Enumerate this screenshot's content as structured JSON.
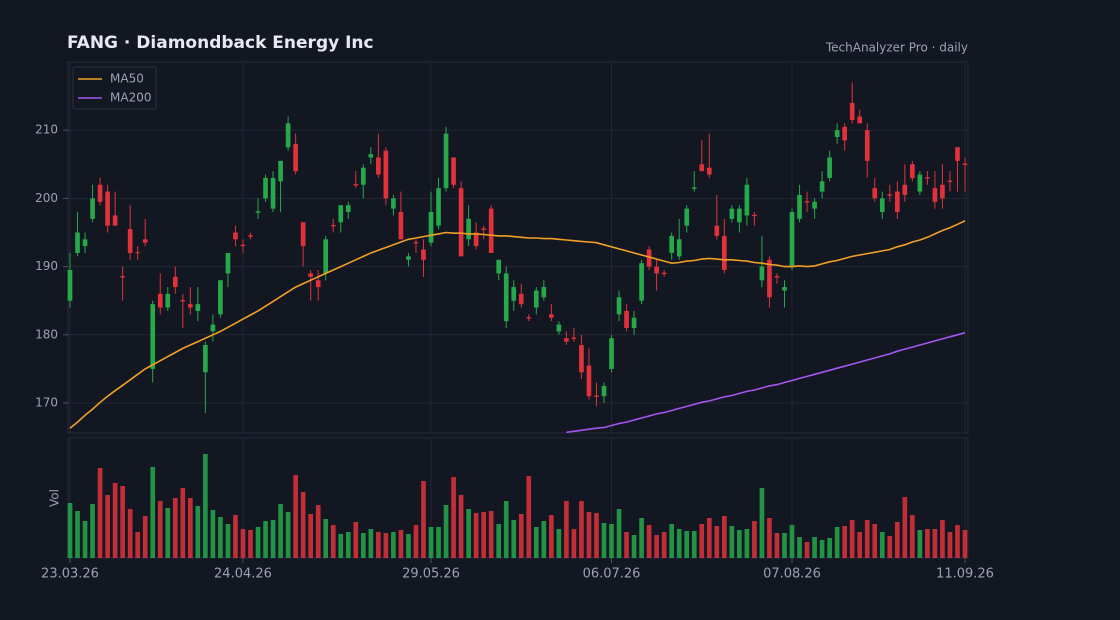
{
  "chart_data": {
    "type": "candlestick",
    "title": "FANG  ·  Diamondback Energy Inc",
    "subtitle": "TechAnalyzer Pro · daily",
    "volume_label": "Vol",
    "x": [
      "23.03.26",
      null,
      null,
      null,
      null,
      null,
      null,
      null,
      null,
      null,
      null,
      null,
      null,
      null,
      null,
      null,
      null,
      null,
      null,
      null,
      null,
      null,
      null,
      "24.04.26",
      null,
      null,
      null,
      null,
      null,
      null,
      null,
      null,
      null,
      null,
      null,
      null,
      null,
      null,
      null,
      null,
      null,
      null,
      null,
      null,
      null,
      null,
      null,
      null,
      "29.05.26",
      null,
      null,
      null,
      null,
      null,
      null,
      null,
      null,
      null,
      null,
      null,
      null,
      null,
      null,
      null,
      null,
      null,
      null,
      null,
      null,
      null,
      null,
      null,
      "06.07.26",
      null,
      null,
      null,
      null,
      null,
      null,
      null,
      null,
      null,
      null,
      null,
      null,
      null,
      null,
      null,
      null,
      null,
      null,
      null,
      null,
      null,
      null,
      null,
      "07.08.26",
      null,
      null,
      null,
      null,
      null,
      null,
      null,
      null,
      null,
      null,
      null,
      null,
      null,
      null,
      null,
      null,
      null,
      null,
      null,
      null,
      null,
      null,
      "11.09.26"
    ],
    "open": [
      185,
      192,
      193,
      197,
      202,
      201,
      197.5,
      188.6,
      195.5,
      192.1,
      194,
      175,
      186,
      184,
      188.5,
      185.1,
      184.5,
      183.5,
      174.5,
      180.5,
      183,
      189,
      195,
      193.2,
      194.6,
      197.9,
      200,
      198.5,
      202.5,
      207.5,
      208,
      196.5,
      189,
      188,
      189,
      196.1,
      196.5,
      198,
      202.1,
      202,
      206,
      206,
      207,
      198.5,
      198,
      191,
      193.6,
      192.5,
      193.5,
      196,
      201.5,
      206,
      201.5,
      194,
      195,
      195.6,
      198.5,
      189,
      182,
      185,
      186,
      182.6,
      184,
      185.5,
      183,
      180.5,
      179.5,
      179.6,
      178.5,
      175.5,
      171.1,
      171,
      175,
      183,
      183.5,
      181,
      185,
      192.5,
      190,
      189.1,
      192,
      191.5,
      196,
      201.4,
      205,
      204.5,
      196,
      194.5,
      197,
      196.5,
      197.5,
      197.6,
      188,
      191,
      188.6,
      186.5,
      190,
      197,
      199.6,
      198.5,
      201,
      203,
      209,
      210.5,
      214,
      212,
      210,
      201.5,
      198,
      200.6,
      201,
      202,
      205,
      201,
      203.1,
      201.5,
      202,
      202.6,
      207.5,
      205.1
    ],
    "high": [
      192,
      198,
      195,
      202,
      203,
      202,
      201,
      190,
      199,
      193,
      197,
      185,
      189,
      187,
      190,
      186,
      187,
      187,
      179,
      183,
      188,
      192,
      196,
      194,
      195,
      200,
      203.5,
      204,
      205.5,
      212,
      209.5,
      196.5,
      189.5,
      189.5,
      194.5,
      197,
      199,
      199.5,
      204,
      205,
      207.5,
      209.5,
      207.5,
      200.5,
      201,
      192,
      194,
      194,
      201,
      203,
      210.5,
      206,
      202.5,
      199,
      196.5,
      196,
      199,
      191,
      190,
      188,
      187.5,
      183,
      187,
      188,
      184.5,
      182,
      180.5,
      181,
      180,
      178,
      173,
      173,
      180,
      186.5,
      184.5,
      183.5,
      191,
      193,
      191,
      189.5,
      195,
      197,
      199,
      204,
      208.5,
      209.5,
      200.5,
      197,
      199,
      199,
      203,
      198,
      194.5,
      191.5,
      189,
      188,
      198.5,
      202,
      201,
      200,
      204,
      207,
      211,
      211,
      217,
      213,
      211,
      203,
      201,
      202,
      202.5,
      205,
      205.5,
      204,
      204,
      204,
      205,
      204,
      207.5,
      206
    ],
    "low": [
      184,
      191.5,
      192,
      196.5,
      199,
      195,
      196,
      185,
      191,
      191,
      193,
      173,
      183,
      183.5,
      186,
      181,
      183,
      182,
      168.5,
      179,
      182.5,
      187,
      193,
      192,
      194,
      197,
      199.5,
      198,
      198,
      207,
      203.5,
      190,
      185,
      185,
      188,
      195,
      195,
      197,
      201.5,
      200,
      205,
      203,
      199,
      197.5,
      194,
      190,
      192,
      188.5,
      193,
      195.5,
      201,
      201.5,
      191.5,
      193,
      192.5,
      194,
      192,
      188,
      181,
      183.5,
      184,
      182,
      183,
      185,
      182,
      180,
      178.5,
      179,
      173.5,
      170.5,
      169.5,
      170,
      174.5,
      182,
      180.5,
      180,
      184.5,
      189.5,
      186.5,
      188.5,
      191,
      191,
      195,
      201,
      204,
      203,
      194,
      189,
      196.5,
      195,
      196,
      196,
      187,
      184,
      187.5,
      184,
      189.5,
      196.5,
      198,
      197,
      200,
      202.5,
      208,
      207,
      211,
      211,
      203,
      199.5,
      197,
      199.5,
      197,
      199.5,
      202.5,
      200.5,
      202,
      198.5,
      198.5,
      201,
      201,
      201
    ],
    "close": [
      189.5,
      195,
      194,
      200,
      199.5,
      196,
      196,
      188.4,
      192,
      192,
      193.5,
      184.5,
      184,
      186,
      187,
      184.9,
      184,
      184.5,
      178.5,
      181.5,
      188,
      192,
      194,
      193,
      194.4,
      198.1,
      203,
      203,
      205.5,
      211,
      204,
      193,
      188.5,
      187,
      194,
      195.9,
      199,
      199,
      201.9,
      204.5,
      206.5,
      203.5,
      200,
      200,
      194,
      191.5,
      193.4,
      191,
      198,
      201.5,
      209.5,
      202,
      191.5,
      197,
      193,
      195.4,
      192,
      191,
      189,
      187,
      184.5,
      182.4,
      186.5,
      187,
      182.5,
      181.5,
      179,
      179.4,
      174.5,
      171,
      170.9,
      172.5,
      179.5,
      185.5,
      181,
      182.5,
      190.5,
      190,
      189,
      188.9,
      194.5,
      194,
      198.5,
      201.6,
      204,
      203.5,
      194.5,
      189.5,
      198.5,
      198.5,
      202,
      197.4,
      190,
      185.5,
      188.4,
      187,
      198,
      200.5,
      199.4,
      199.5,
      202.5,
      206,
      210,
      208.5,
      211.5,
      211,
      205.5,
      200,
      200,
      200.4,
      198,
      200.5,
      203,
      203.5,
      202.9,
      199.5,
      200,
      202.4,
      205.5,
      204.9
    ],
    "up_color": "#26a94b",
    "down_color": "#e1323c",
    "series": [
      {
        "name": "MA50",
        "color": "#f2a024",
        "values": [
          166.3,
          167.2,
          168.2,
          169.1,
          170.1,
          171,
          171.8,
          172.6,
          173.4,
          174.2,
          175,
          175.6,
          176.2,
          176.8,
          177.4,
          178,
          178.5,
          179,
          179.5,
          180,
          180.5,
          181.1,
          181.7,
          182.3,
          182.9,
          183.5,
          184.2,
          184.9,
          185.6,
          186.3,
          187,
          187.5,
          188,
          188.5,
          189,
          189.5,
          190,
          190.5,
          191,
          191.5,
          192,
          192.4,
          192.8,
          193.2,
          193.6,
          194,
          194.2,
          194.4,
          194.6,
          194.8,
          195,
          194.9,
          194.9,
          194.8,
          194.8,
          194.7,
          194.6,
          194.5,
          194.5,
          194.4,
          194.3,
          194.2,
          194.2,
          194.1,
          194.1,
          194,
          193.9,
          193.8,
          193.7,
          193.6,
          193.5,
          193.2,
          192.9,
          192.6,
          192.3,
          192,
          191.7,
          191.4,
          191.1,
          190.8,
          190.5,
          190.6,
          190.8,
          190.9,
          191.1,
          191.2,
          191.1,
          191,
          191,
          190.9,
          190.8,
          190.6,
          190.5,
          190.3,
          190.2,
          190,
          190,
          190.1,
          190,
          190.1,
          190.4,
          190.7,
          190.9,
          191.2,
          191.5,
          191.7,
          191.9,
          192.1,
          192.3,
          192.5,
          192.9,
          193.2,
          193.6,
          193.9,
          194.3,
          194.8,
          195.3,
          195.7,
          196.2,
          196.7
        ]
      },
      {
        "name": "MA200",
        "color": "#a456f0",
        "values": [
          null,
          null,
          null,
          null,
          null,
          null,
          null,
          null,
          null,
          null,
          null,
          null,
          null,
          null,
          null,
          null,
          null,
          null,
          null,
          null,
          null,
          null,
          null,
          null,
          null,
          null,
          null,
          null,
          null,
          null,
          null,
          null,
          null,
          null,
          null,
          null,
          null,
          null,
          null,
          null,
          null,
          null,
          null,
          null,
          null,
          null,
          null,
          null,
          null,
          null,
          null,
          null,
          null,
          null,
          null,
          null,
          null,
          null,
          null,
          null,
          null,
          null,
          null,
          null,
          null,
          null,
          165.7,
          165.85,
          166,
          166.15,
          166.3,
          166.4,
          166.7,
          167,
          167.2,
          167.5,
          167.8,
          168.1,
          168.4,
          168.6,
          168.9,
          169.2,
          169.5,
          169.8,
          170.1,
          170.3,
          170.6,
          170.9,
          171.1,
          171.4,
          171.7,
          171.9,
          172.2,
          172.5,
          172.7,
          173,
          173.3,
          173.6,
          173.9,
          174.2,
          174.5,
          174.8,
          175.1,
          175.4,
          175.7,
          176,
          176.3,
          176.6,
          176.9,
          177.2,
          177.6,
          177.9,
          178.2,
          178.5,
          178.8,
          179.1,
          179.4,
          179.7,
          180,
          180.3
        ]
      }
    ],
    "volume": [
      55,
      47,
      37,
      54,
      90,
      63,
      75,
      72,
      49,
      26,
      42,
      91,
      57,
      50,
      60,
      70,
      60,
      52,
      104,
      48,
      41,
      34,
      43,
      29,
      28,
      31,
      37,
      38,
      54,
      46,
      83,
      66,
      44,
      53,
      39,
      33,
      24,
      26,
      36,
      25,
      29,
      26,
      25,
      26,
      28,
      24,
      33,
      77,
      31,
      31,
      53,
      81,
      63,
      49,
      45,
      46,
      47,
      34,
      57,
      38,
      44,
      82,
      31,
      37,
      43,
      29,
      57,
      29,
      57,
      46,
      45,
      35,
      34,
      49,
      26,
      23,
      40,
      33,
      23,
      26,
      34,
      29,
      27,
      27,
      34,
      40,
      32,
      42,
      32,
      28,
      29,
      37,
      70,
      40,
      25,
      25,
      33,
      21,
      16,
      21,
      18,
      20,
      31,
      32,
      38,
      26,
      38,
      34,
      26,
      22,
      36,
      61,
      43,
      28,
      29,
      29,
      38,
      26,
      33,
      28
    ],
    "ylim": [
      165.6,
      220
    ],
    "yticks": [
      170,
      180,
      190,
      200,
      210
    ],
    "volume_ylim": [
      0,
      120
    ],
    "grid": true,
    "legend": "upper left"
  }
}
